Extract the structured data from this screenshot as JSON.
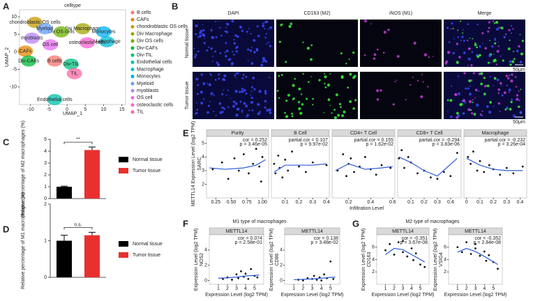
{
  "panel_labels": [
    "A",
    "B",
    "C",
    "D",
    "E",
    "F",
    "G"
  ],
  "image_grid": {
    "columns": [
      "DAPI",
      "CD163 (M2)",
      "iNOS (M1)",
      "Merge"
    ],
    "rows": [
      "Normal tissue",
      "Tumor tissue"
    ],
    "scale_bar": "50μm"
  },
  "chart_data": [
    {
      "type": "scatter",
      "title": "celltype",
      "xlabel": "UMAP_1",
      "ylabel": "UMAP_2",
      "xlim": [
        -13,
        16
      ],
      "ylim": [
        -15,
        12
      ],
      "xticks": [
        -10,
        -5,
        0,
        5,
        10,
        15
      ],
      "yticks": [
        -10,
        -5,
        0,
        5,
        10
      ],
      "series": [
        {
          "name": "B cells",
          "color": "#F8766D",
          "x": [
            -3.4
          ],
          "y": [
            -2.6
          ]
        },
        {
          "name": "CAFs",
          "color": "#E58700",
          "x": [
            -11.4
          ],
          "y": [
            0.2
          ]
        },
        {
          "name": "chondroblastic OS cells",
          "color": "#C99800",
          "x": [
            -8.8
          ],
          "y": [
            8.4
          ]
        },
        {
          "name": "Div Macrophage",
          "color": "#A3A500",
          "x": [
            4.3
          ],
          "y": [
            6.6
          ]
        },
        {
          "name": "Div OS cells",
          "color": "#6BB100",
          "x": [
            -1.6
          ],
          "y": [
            5.7
          ]
        },
        {
          "name": "Div-CAFs",
          "color": "#00BA38",
          "x": [
            -10.5
          ],
          "y": [
            -2.6
          ]
        },
        {
          "name": "Div-TIL",
          "color": "#00BF7D",
          "x": [
            1.1
          ],
          "y": [
            -3.5
          ]
        },
        {
          "name": "Endothelial cells",
          "color": "#00C0AF",
          "x": [
            -3.4
          ],
          "y": [
            -13.6
          ]
        },
        {
          "name": "Macrophage",
          "color": "#00BCD8",
          "x": [
            10.9
          ],
          "y": [
            2.9
          ]
        },
        {
          "name": "Monocytes",
          "color": "#00B0F6",
          "x": [
            10
          ],
          "y": [
            5.7
          ]
        },
        {
          "name": "Myeloid",
          "color": "#619CFF",
          "x": [
            -6.1
          ],
          "y": [
            6.6
          ]
        },
        {
          "name": "myoblasts",
          "color": "#B983FF",
          "x": [
            -9.6
          ],
          "y": [
            3.9
          ]
        },
        {
          "name": "OS cell",
          "color": "#E76BF3",
          "x": [
            -4.6
          ],
          "y": [
            2
          ]
        },
        {
          "name": "osteoclastic cells",
          "color": "#FD61D1",
          "x": [
            5.5
          ],
          "y": [
            2.6
          ]
        },
        {
          "name": "TIL",
          "color": "#FF67A4",
          "x": [
            2
          ],
          "y": [
            -6.2
          ]
        }
      ]
    },
    {
      "type": "bar",
      "ylabel": "Relative percentage of M2 macrophages (%)",
      "categories": [
        "Normal tissue",
        "Tumor tissue"
      ],
      "values": [
        1.0,
        4.1
      ],
      "errors": [
        0.05,
        0.25
      ],
      "colors": [
        "#000000",
        "#e8302f"
      ],
      "significance": "**",
      "ylim": [
        0,
        5
      ],
      "yticks": [
        0,
        1,
        2,
        3,
        4,
        5
      ]
    },
    {
      "type": "bar",
      "ylabel": "Relative percentage of M1 macrophages (%)",
      "categories": [
        "Normal tissue",
        "Tumor tissue"
      ],
      "values": [
        1.0,
        1.15
      ],
      "errors": [
        0.15,
        0.08
      ],
      "colors": [
        "#000000",
        "#e8302f"
      ],
      "significance": "n.s.",
      "ylim": [
        0,
        2
      ],
      "yticks": [
        0,
        1,
        2
      ]
    },
    {
      "type": "facet_scatter",
      "xlabel": "Infiltration Level",
      "ylabel": "METTL14 Expression Level (log2 TPM)",
      "cancer": "SARC",
      "ylim": [
        1,
        5.5
      ],
      "yticks": [
        2,
        3,
        4,
        5
      ],
      "facets": [
        {
          "name": "Purity",
          "annotation": [
            "cor = 0.252",
            "p = 3.46e-05"
          ],
          "xlim": [
            0.1,
            1.1
          ],
          "xticks": [
            0.25,
            {
              "value": 0.5,
              "label": "0.50"
            },
            0.75,
            {
              "value": 1,
              "label": "1.00"
            }
          ],
          "x": [
            0.2,
            0.35,
            0.45,
            0.55,
            0.62,
            0.7,
            0.78,
            0.85,
            0.9,
            0.95,
            1.0,
            0.98
          ],
          "y": [
            3.1,
            3.6,
            2.4,
            3.9,
            3.0,
            4.2,
            2.8,
            3.5,
            4.6,
            3.3,
            4.0,
            2.2
          ],
          "fit_x": [
            0.15,
            0.4,
            0.7,
            0.9,
            1.05
          ],
          "fit_y": [
            3.2,
            3.1,
            3.2,
            3.4,
            3.8
          ]
        },
        {
          "name": "B Cell",
          "annotation": [
            "partial.cor = 0.107",
            "p = 9.97e-02"
          ],
          "xlim": [
            0,
            0.42
          ],
          "xticks": [
            0.1,
            0.2,
            0.3,
            0.4
          ],
          "x": [
            0.02,
            0.03,
            0.05,
            0.06,
            0.08,
            0.1,
            0.12,
            0.15,
            0.2,
            0.25,
            0.3,
            0.4
          ],
          "y": [
            3.5,
            2.8,
            4.1,
            3.2,
            2.5,
            3.8,
            3.0,
            4.4,
            3.3,
            2.9,
            3.6,
            3.4
          ],
          "fit_x": [
            0.02,
            0.1,
            0.2,
            0.3,
            0.4
          ],
          "fit_y": [
            2.9,
            3.4,
            3.4,
            3.4,
            3.5
          ]
        },
        {
          "name": "CD4+ T Cell",
          "annotation": [
            "partial.cor = 0.155",
            "p = 1.62e-02"
          ],
          "xlim": [
            0.05,
            0.62
          ],
          "xticks": [
            0.2,
            0.4,
            0.6
          ],
          "x": [
            0.1,
            0.15,
            0.18,
            0.2,
            0.22,
            0.25,
            0.3,
            0.35,
            0.4,
            0.45,
            0.5,
            0.58
          ],
          "y": [
            3.0,
            4.2,
            2.6,
            3.5,
            3.9,
            2.9,
            3.3,
            4.0,
            3.1,
            2.7,
            3.4,
            3.2
          ],
          "fit_x": [
            0.08,
            0.2,
            0.35,
            0.5,
            0.6
          ],
          "fit_y": [
            3.0,
            3.5,
            3.1,
            3.2,
            3.3
          ]
        },
        {
          "name": "CD8+ T Cell",
          "annotation": [
            "partial.cor = -0.294",
            "p = 3.83e-06"
          ],
          "xlim": [
            0,
            0.48
          ],
          "xticks": [
            0.1,
            0.2,
            0.3,
            0.4
          ],
          "x": [
            0.01,
            0.03,
            0.05,
            0.08,
            0.1,
            0.15,
            0.2,
            0.25,
            0.3,
            0.35,
            0.4,
            0.45
          ],
          "y": [
            3.9,
            4.5,
            3.2,
            4.0,
            3.6,
            2.8,
            3.0,
            2.5,
            2.4,
            2.9,
            2.6,
            4.3
          ],
          "fit_x": [
            0.01,
            0.1,
            0.2,
            0.3,
            0.45
          ],
          "fit_y": [
            4.0,
            3.6,
            3.0,
            2.6,
            3.9
          ]
        },
        {
          "name": "Macrophage",
          "annotation": [
            "partial.cor = -0.232",
            "p = 3.26e-04"
          ],
          "xlim": [
            -0.02,
            0.45
          ],
          "xticks": [
            0,
            0.1,
            0.2,
            0.3,
            0.4
          ],
          "x": [
            0.01,
            0.03,
            0.05,
            0.08,
            0.1,
            0.13,
            0.17,
            0.2,
            0.25,
            0.3,
            0.35,
            0.42
          ],
          "y": [
            4.0,
            3.5,
            4.4,
            3.0,
            3.7,
            2.9,
            3.4,
            3.1,
            2.7,
            3.2,
            2.8,
            3.3
          ],
          "fit_x": [
            0,
            0.1,
            0.2,
            0.3,
            0.42
          ],
          "fit_y": [
            3.9,
            3.4,
            3.1,
            3.0,
            3.0
          ]
        }
      ]
    },
    {
      "type": "facet_scatter",
      "title": "M1 type of macrophages",
      "xlabel": "Expression Level (log2 TPM)",
      "ylabel": "Expression Level (log2 TPM)",
      "ylim": [
        -0.5,
        6
      ],
      "yticks": [
        0,
        2,
        4
      ],
      "facets": [
        {
          "name": "METTL14",
          "gene": "NOS2",
          "annotation": [
            "cor = 0.074",
            "p = 2.58e-01"
          ],
          "xlim": [
            0,
            6
          ],
          "xticks": [
            1,
            2,
            3,
            4,
            5
          ],
          "x": [
            1.5,
            2,
            2.5,
            3,
            3.2,
            3.5,
            3.8,
            4,
            4.3,
            4.6,
            5,
            5.3
          ],
          "y": [
            0.2,
            0.4,
            0.1,
            0.8,
            0.3,
            1.2,
            0.5,
            0.9,
            0.2,
            1.5,
            0.6,
            0.4
          ],
          "fit_x": [
            1,
            2,
            3,
            4,
            5.5
          ],
          "fit_y": [
            0.3,
            0.35,
            0.45,
            0.6,
            0.7
          ]
        },
        {
          "name": "METTL14",
          "gene": "CD86",
          "annotation": [
            "cor = 0.138",
            "p = 3.48e-02"
          ],
          "xlim": [
            0,
            6
          ],
          "xticks": [
            1,
            2,
            3,
            4,
            5
          ],
          "x": [
            1.5,
            2,
            2.5,
            3,
            3.2,
            3.5,
            3.8,
            4,
            4.3,
            4.6,
            5,
            5.3
          ],
          "y": [
            0.1,
            0.0,
            0.3,
            0.2,
            0.6,
            0.1,
            0.4,
            0.0,
            0.8,
            0.3,
            2.5,
            0.2
          ],
          "fit_x": [
            1,
            2,
            3,
            4,
            5.5
          ],
          "fit_y": [
            0.1,
            0.15,
            0.2,
            0.3,
            0.45
          ]
        }
      ]
    },
    {
      "type": "facet_scatter",
      "title": "M2 type of macrophages",
      "xlabel": "Expression Level (log2 TPM)",
      "ylabel": "Expression Level (log2 TPM)",
      "ylim": [
        0,
        8
      ],
      "yticks": [
        2,
        4,
        6
      ],
      "facets": [
        {
          "name": "METTL14",
          "gene": "CD163",
          "annotation": [
            "cor = -0.351",
            "p = 3.67e-08"
          ],
          "xlim": [
            0,
            6
          ],
          "xticks": [
            1,
            2,
            3,
            4,
            5
          ],
          "x": [
            1,
            1.5,
            2,
            2.5,
            3,
            3,
            3.5,
            4,
            4.2,
            4.5,
            5,
            5.5
          ],
          "y": [
            5.5,
            6.5,
            4.8,
            6.8,
            5.2,
            7.0,
            4.5,
            5.8,
            3.9,
            5.0,
            3.2,
            2.8
          ],
          "fit_x": [
            1,
            2,
            3,
            4,
            5.5
          ],
          "fit_y": [
            4.8,
            5.8,
            5.6,
            4.8,
            3.6
          ]
        },
        {
          "name": "METTL14",
          "gene": "VSIG4",
          "annotation": [
            "cor = -0.352",
            "p = 2.84e-08"
          ],
          "xlim": [
            0,
            6
          ],
          "xticks": [
            1,
            2,
            3,
            4,
            5
          ],
          "x": [
            1,
            1.5,
            2,
            2.5,
            3,
            3,
            3.5,
            4,
            4.2,
            4.5,
            5,
            5.5
          ],
          "y": [
            6.0,
            5.2,
            6.8,
            4.9,
            5.8,
            6.5,
            4.6,
            5.3,
            3.8,
            4.7,
            3.6,
            2.5
          ],
          "fit_x": [
            1,
            2,
            3,
            4,
            5.5
          ],
          "fit_y": [
            5.2,
            5.8,
            5.3,
            4.5,
            3.2
          ]
        }
      ]
    }
  ]
}
